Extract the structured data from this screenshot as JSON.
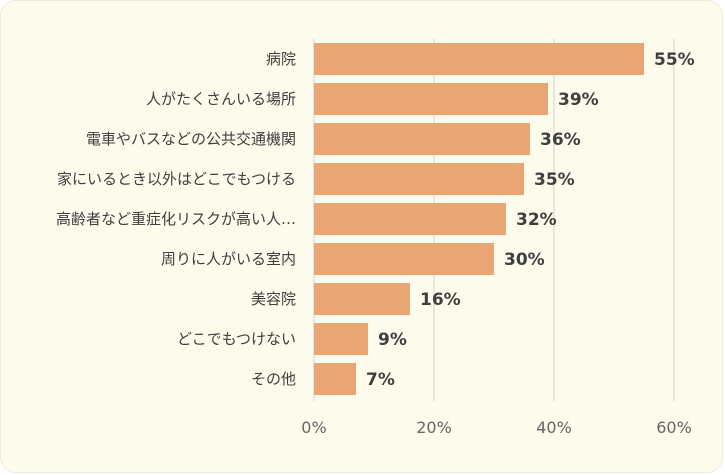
{
  "colors": {
    "background": "#fdfbec",
    "bar": "#eaa574",
    "grid": "#d9d9d9",
    "text": "#3f3f3f"
  },
  "chart_data": {
    "type": "bar",
    "orientation": "horizontal",
    "categories": [
      "病院",
      "人がたくさんいる場所",
      "電車やバスなどの公共交通機関",
      "家にいるとき以外はどこでもつける",
      "高齢者など重症化リスクが高い人…",
      "周りに人がいる室内",
      "美容院",
      "どこでもつけない",
      "その他"
    ],
    "values": [
      55,
      39,
      36,
      35,
      32,
      30,
      16,
      9,
      7
    ],
    "value_labels": [
      "55%",
      "39%",
      "36%",
      "35%",
      "32%",
      "30%",
      "16%",
      "9%",
      "7%"
    ],
    "xlim": [
      0,
      60
    ],
    "x_ticks": [
      0,
      20,
      40,
      60
    ],
    "x_tick_labels": [
      "0%",
      "20%",
      "40%",
      "60%"
    ],
    "grid": true,
    "title": "",
    "xlabel": "",
    "ylabel": ""
  }
}
